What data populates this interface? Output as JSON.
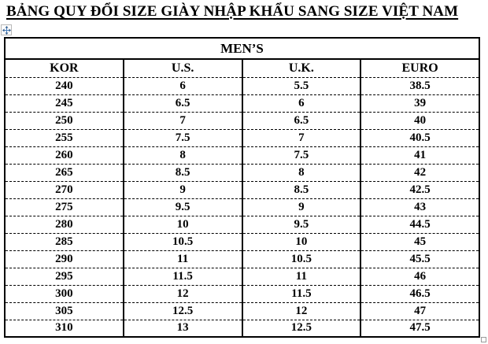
{
  "title": "BẢNG QUY ĐỔI SIZE GIÀY NHẬP KHẨU SANG SIZE VIỆT NAM",
  "table": {
    "group_header": "MEN’S",
    "columns": [
      "KOR",
      "U.S.",
      "U.K.",
      "EURO"
    ],
    "rows": [
      [
        "240",
        "6",
        "5.5",
        "38.5"
      ],
      [
        "245",
        "6.5",
        "6",
        "39"
      ],
      [
        "250",
        "7",
        "6.5",
        "40"
      ],
      [
        "255",
        "7.5",
        "7",
        "40.5"
      ],
      [
        "260",
        "8",
        "7.5",
        "41"
      ],
      [
        "265",
        "8.5",
        "8",
        "42"
      ],
      [
        "270",
        "9",
        "8.5",
        "42.5"
      ],
      [
        "275",
        "9.5",
        "9",
        "43"
      ],
      [
        "280",
        "10",
        "9.5",
        "44.5"
      ],
      [
        "285",
        "10.5",
        "10",
        "45"
      ],
      [
        "290",
        "11",
        "10.5",
        "45.5"
      ],
      [
        "295",
        "11.5",
        "11",
        "46"
      ],
      [
        "300",
        "12",
        "11.5",
        "46.5"
      ],
      [
        "305",
        "12.5",
        "12",
        "47"
      ],
      [
        "310",
        "13",
        "12.5",
        "47.5"
      ]
    ]
  },
  "icons": {
    "move_handle": "table-move-handle",
    "resize_handle": "table-resize-handle"
  },
  "colors": {
    "text": "#000000",
    "handle_arrow": "#4a7ebb",
    "handle_border": "#b8b8b8"
  }
}
